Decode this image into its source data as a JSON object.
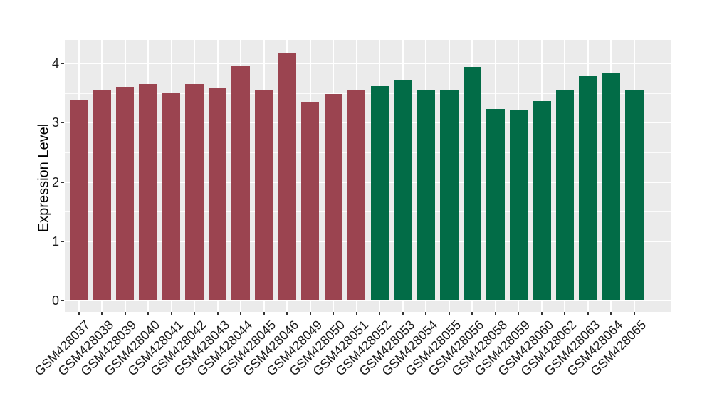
{
  "chart_data": {
    "type": "bar",
    "title": "",
    "xlabel": "",
    "ylabel": "Expression Level",
    "categories": [
      "GSM428037",
      "GSM428038",
      "GSM428039",
      "GSM428040",
      "GSM428041",
      "GSM428042",
      "GSM428043",
      "GSM428044",
      "GSM428045",
      "GSM428046",
      "GSM428049",
      "GSM428050",
      "GSM428051",
      "GSM428052",
      "GSM428053",
      "GSM428054",
      "GSM428055",
      "GSM428056",
      "GSM428058",
      "GSM428059",
      "GSM428060",
      "GSM428062",
      "GSM428063",
      "GSM428064",
      "GSM428065"
    ],
    "values": [
      3.38,
      3.56,
      3.61,
      3.65,
      3.51,
      3.65,
      3.58,
      3.95,
      3.56,
      4.18,
      3.35,
      3.48,
      3.55,
      3.62,
      3.73,
      3.55,
      3.56,
      3.94,
      3.23,
      3.21,
      3.37,
      3.56,
      3.79,
      3.83,
      3.55
    ],
    "bar_colors": [
      "#9B4450",
      "#9B4450",
      "#9B4450",
      "#9B4450",
      "#9B4450",
      "#9B4450",
      "#9B4450",
      "#9B4450",
      "#9B4450",
      "#9B4450",
      "#9B4450",
      "#9B4450",
      "#9B4450",
      "#026C47",
      "#026C47",
      "#026C47",
      "#026C47",
      "#026C47",
      "#026C47",
      "#026C47",
      "#026C47",
      "#026C47",
      "#026C47",
      "#026C47",
      "#026C47"
    ],
    "yticks": [
      0,
      1,
      2,
      3,
      4
    ],
    "minor_yticks": [
      0.5,
      1.5,
      2.5,
      3.5
    ],
    "ylim": [
      -0.19,
      4.4
    ],
    "grid": "on",
    "legend": "none",
    "colors": {
      "group_red": "#9B4450",
      "group_green": "#026C47",
      "panel_bg": "#EBEBEB",
      "grid": "#FFFFFF",
      "tick_mark": "#333333",
      "tick_text": "#1A1A1A",
      "figure_bg": "#FFFFFF"
    }
  }
}
